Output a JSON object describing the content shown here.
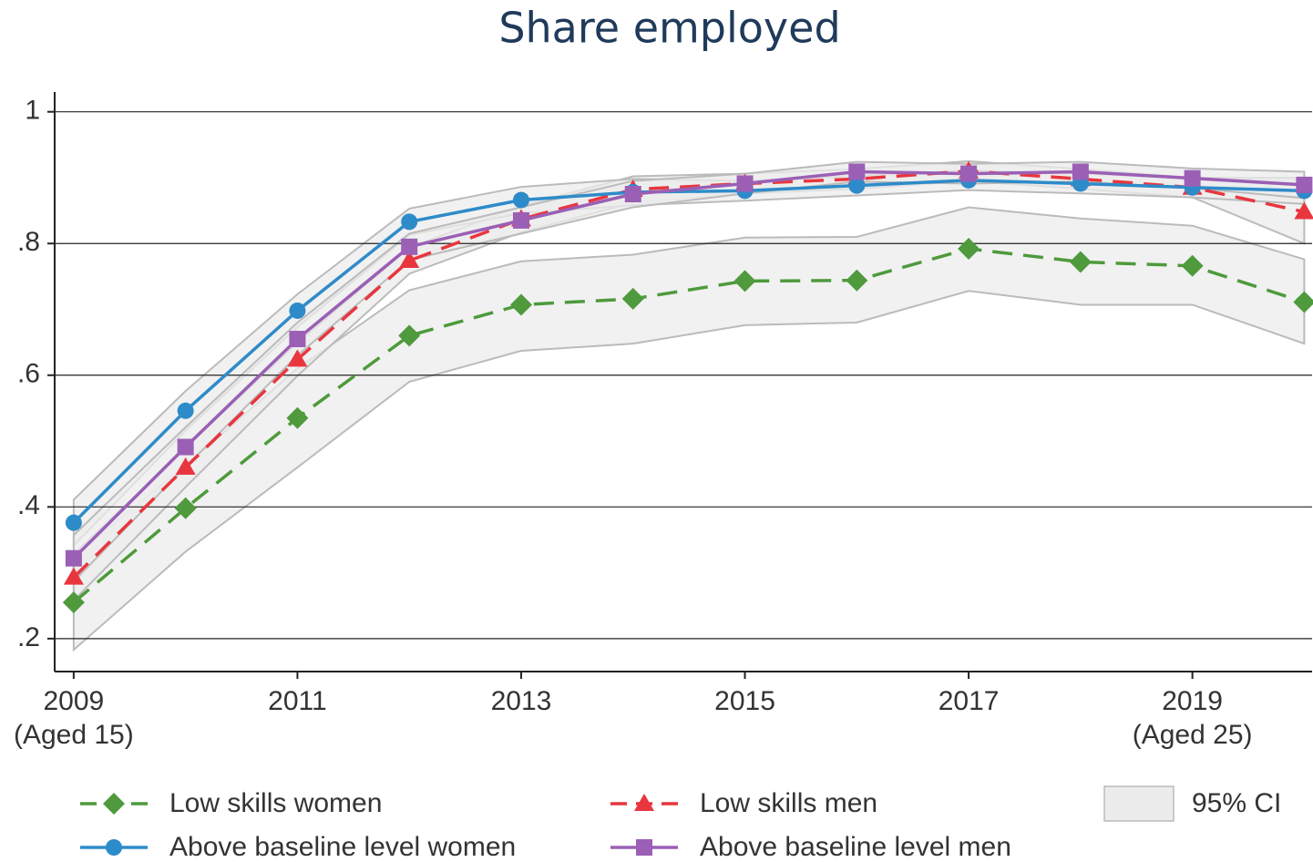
{
  "chart_data": {
    "type": "line",
    "title": "Share employed",
    "x": [
      2009,
      2010,
      2011,
      2012,
      2013,
      2014,
      2015,
      2016,
      2017,
      2018,
      2019,
      2020
    ],
    "xlim": [
      2008.83,
      2020.07
    ],
    "xticks": [
      {
        "value": 2009,
        "label": "2009",
        "sublabel": "(Aged 15)"
      },
      2011,
      2013,
      2015,
      2017,
      {
        "value": 2019,
        "label": "2019",
        "sublabel": "(Aged 25)"
      }
    ],
    "ylim": [
      0.15,
      1.03
    ],
    "yticks": [
      {
        "value": 0.2,
        "label": ".2"
      },
      {
        "value": 0.4,
        "label": ".4"
      },
      {
        "value": 0.6,
        "label": ".6"
      },
      {
        "value": 0.8,
        "label": ".8"
      },
      1
    ],
    "grid": true,
    "ci_label": "95% CI",
    "ci_color": "#ececec",
    "series": [
      {
        "name": "Low skills women",
        "color": "#4e9a3c",
        "dashed": true,
        "marker": "diamond",
        "values": [
          0.255,
          0.398,
          0.535,
          0.66,
          0.707,
          0.716,
          0.743,
          0.744,
          0.792,
          0.772,
          0.766,
          0.711
        ],
        "ci_lower": [
          0.183,
          0.332,
          0.46,
          0.59,
          0.637,
          0.648,
          0.676,
          0.68,
          0.728,
          0.707,
          0.707,
          0.648
        ],
        "ci_upper": [
          0.325,
          0.463,
          0.61,
          0.729,
          0.773,
          0.783,
          0.809,
          0.81,
          0.855,
          0.838,
          0.827,
          0.776
        ]
      },
      {
        "name": "Low skills men",
        "color": "#e8363e",
        "dashed": true,
        "marker": "triangle",
        "values": [
          0.293,
          0.46,
          0.624,
          0.774,
          0.837,
          0.882,
          0.891,
          0.898,
          0.91,
          0.898,
          0.885,
          0.848
        ],
        "ci_lower": [
          0.258,
          0.43,
          0.599,
          0.754,
          0.817,
          0.862,
          0.876,
          0.883,
          0.895,
          0.883,
          0.87,
          0.8
        ],
        "ci_upper": [
          0.328,
          0.49,
          0.649,
          0.794,
          0.857,
          0.902,
          0.906,
          0.913,
          0.925,
          0.913,
          0.9,
          0.896
        ]
      },
      {
        "name": "Above baseline level women",
        "color": "#2e8bc9",
        "dashed": false,
        "marker": "circle",
        "values": [
          0.376,
          0.546,
          0.698,
          0.833,
          0.866,
          0.878,
          0.88,
          0.888,
          0.896,
          0.891,
          0.885,
          0.88
        ],
        "ci_lower": [
          0.341,
          0.516,
          0.673,
          0.813,
          0.846,
          0.858,
          0.865,
          0.873,
          0.881,
          0.876,
          0.87,
          0.86
        ],
        "ci_upper": [
          0.411,
          0.576,
          0.723,
          0.853,
          0.886,
          0.898,
          0.895,
          0.903,
          0.911,
          0.906,
          0.9,
          0.9
        ]
      },
      {
        "name": "Above baseline level men",
        "color": "#9b5fb5",
        "dashed": false,
        "marker": "square",
        "values": [
          0.322,
          0.491,
          0.655,
          0.795,
          0.835,
          0.875,
          0.891,
          0.909,
          0.906,
          0.909,
          0.899,
          0.889
        ],
        "ci_lower": [
          0.287,
          0.461,
          0.63,
          0.775,
          0.815,
          0.855,
          0.876,
          0.894,
          0.891,
          0.894,
          0.884,
          0.869
        ],
        "ci_upper": [
          0.357,
          0.521,
          0.68,
          0.815,
          0.855,
          0.895,
          0.906,
          0.924,
          0.921,
          0.924,
          0.914,
          0.909
        ]
      }
    ]
  }
}
